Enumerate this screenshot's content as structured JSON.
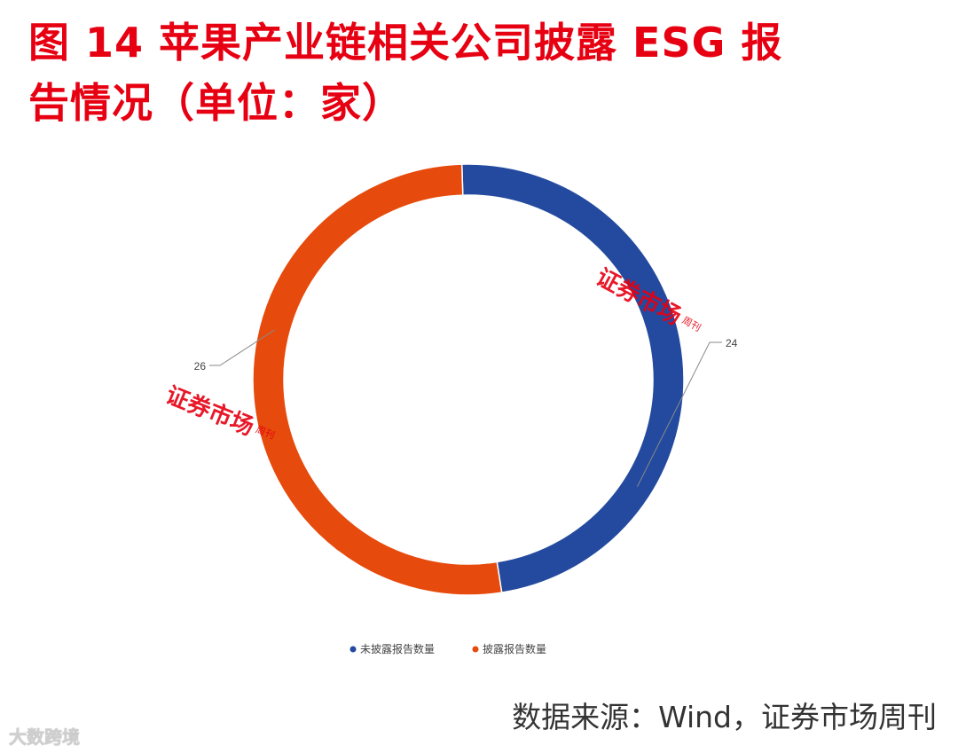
{
  "title": {
    "line1": "图 14  苹果产业链相关公司披露 ESG 报",
    "line2": "告情况（单位：家）"
  },
  "chart_data": {
    "type": "pie",
    "variant": "donut",
    "title": "图 14  苹果产业链相关公司披露 ESG 报告情况（单位：家）",
    "categories": [
      "未披露报告数量",
      "披露报告数量"
    ],
    "values": [
      24,
      26
    ],
    "data_labels": [
      "24",
      "26"
    ],
    "colors": [
      "#234a9e",
      "#e64a0c"
    ],
    "legend": "bottom-center"
  },
  "watermark": {
    "text": "证券市场",
    "sub": "周刊",
    "color": "#e60012"
  },
  "source": "数据来源：Wind，证券市场周刊",
  "footer_logo": "大数跨境"
}
